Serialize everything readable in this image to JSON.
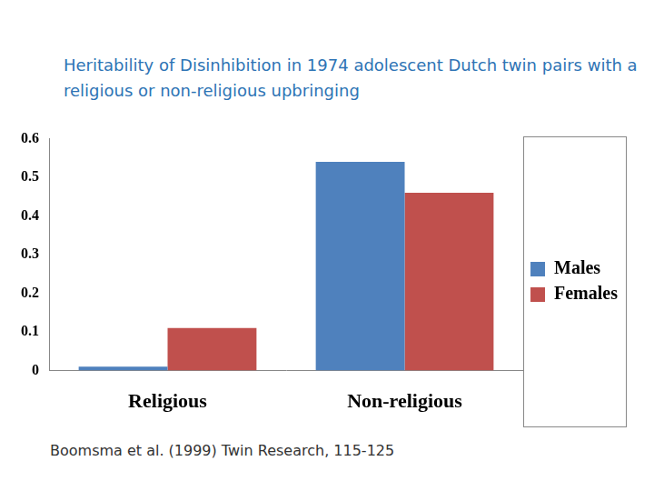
{
  "chart_data": {
    "type": "bar",
    "title": "Heritability of Disinhibition in 1974 adolescent Dutch twin pairs with a religious or non-religious upbringing",
    "categories": [
      "Religious",
      "Non-religious"
    ],
    "series": [
      {
        "name": "Males",
        "color": "#4f81bd",
        "values": [
          0.01,
          0.54
        ]
      },
      {
        "name": "Females",
        "color": "#c0504d",
        "values": [
          0.11,
          0.46
        ]
      }
    ],
    "ylim": [
      0,
      0.6
    ],
    "yticks": [
      0,
      0.1,
      0.2,
      0.3,
      0.4,
      0.5,
      0.6
    ],
    "grid": false,
    "legend": "right",
    "annotations": [
      "Boomsma et al. (1999) Twin Research, 115-125"
    ]
  }
}
